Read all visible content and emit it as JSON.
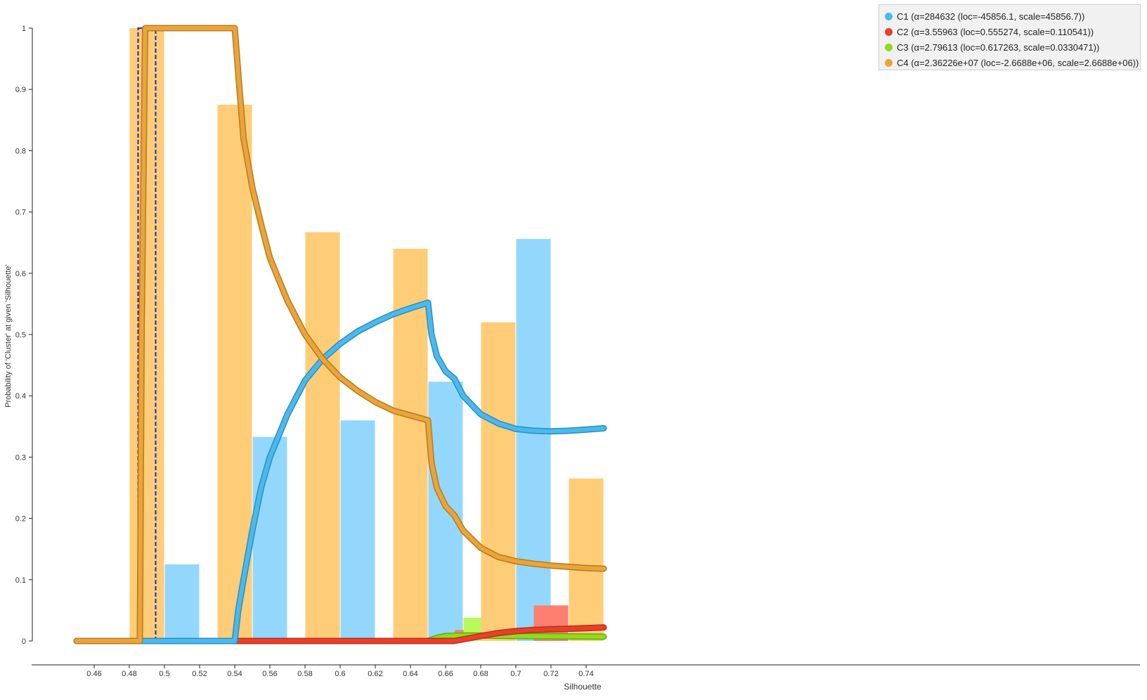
{
  "chart_data": {
    "type": "bar",
    "xlabel": "Silhouette",
    "ylabel": "Probability of 'Cluster' at given 'Silhouette'",
    "xlim": [
      0.45,
      0.75
    ],
    "ylim": [
      0,
      1
    ],
    "xticks": [
      "0.46",
      "0.48",
      "0.5",
      "0.52",
      "0.54",
      "0.56",
      "0.58",
      "0.6",
      "0.62",
      "0.64",
      "0.66",
      "0.68",
      "0.7",
      "0.72",
      "0.74"
    ],
    "yticks": [
      "0",
      "0.1",
      "0.2",
      "0.3",
      "0.4",
      "0.5",
      "0.6",
      "0.7",
      "0.8",
      "0.9",
      "1"
    ],
    "grid": false,
    "legend_position": "top-right",
    "series": [
      {
        "name": "C1 (α=284632 (loc=-45856.1, scale=45856.7))",
        "color": "#4cb9ec",
        "bar_color": "#93d8fc",
        "bars": [
          {
            "x": 0.51,
            "y": 0.125
          },
          {
            "x": 0.56,
            "y": 0.333
          },
          {
            "x": 0.61,
            "y": 0.36
          },
          {
            "x": 0.66,
            "y": 0.423
          },
          {
            "x": 0.71,
            "y": 0.656
          }
        ],
        "curve": [
          [
            0.45,
            0
          ],
          [
            0.54,
            0
          ],
          [
            0.542,
            0.05
          ],
          [
            0.545,
            0.1
          ],
          [
            0.55,
            0.18
          ],
          [
            0.555,
            0.25
          ],
          [
            0.56,
            0.3
          ],
          [
            0.57,
            0.37
          ],
          [
            0.58,
            0.425
          ],
          [
            0.59,
            0.46
          ],
          [
            0.6,
            0.485
          ],
          [
            0.61,
            0.505
          ],
          [
            0.62,
            0.52
          ],
          [
            0.63,
            0.533
          ],
          [
            0.64,
            0.543
          ],
          [
            0.65,
            0.552
          ],
          [
            0.652,
            0.5
          ],
          [
            0.655,
            0.465
          ],
          [
            0.66,
            0.44
          ],
          [
            0.665,
            0.428
          ],
          [
            0.67,
            0.4
          ],
          [
            0.68,
            0.37
          ],
          [
            0.69,
            0.355
          ],
          [
            0.7,
            0.346
          ],
          [
            0.71,
            0.343
          ],
          [
            0.72,
            0.342
          ],
          [
            0.73,
            0.343
          ],
          [
            0.74,
            0.345
          ],
          [
            0.75,
            0.347
          ]
        ]
      },
      {
        "name": "C2 (α=3.55963 (loc=0.555274, scale=0.110541))",
        "color": "#e8402a",
        "bar_color": "#fd7f6f",
        "bars": [
          {
            "x": 0.675,
            "y": 0.018
          },
          {
            "x": 0.72,
            "y": 0.058
          }
        ],
        "curve": [
          [
            0.45,
            0
          ],
          [
            0.665,
            0
          ],
          [
            0.68,
            0.008
          ],
          [
            0.69,
            0.013
          ],
          [
            0.7,
            0.016
          ],
          [
            0.71,
            0.018
          ],
          [
            0.72,
            0.019
          ],
          [
            0.73,
            0.02
          ],
          [
            0.74,
            0.021
          ],
          [
            0.75,
            0.022
          ]
        ]
      },
      {
        "name": "C3 (α=2.79613 (loc=0.617263, scale=0.0330471))",
        "color": "#8edc1a",
        "bar_color": "#b9f95a",
        "bars": [
          {
            "x": 0.68,
            "y": 0.038
          }
        ],
        "curve": [
          [
            0.45,
            0
          ],
          [
            0.65,
            0
          ],
          [
            0.655,
            0.005
          ],
          [
            0.66,
            0.008
          ],
          [
            0.67,
            0.009
          ],
          [
            0.68,
            0.009
          ],
          [
            0.7,
            0.008
          ],
          [
            0.75,
            0.007
          ]
        ]
      },
      {
        "name": "C4 (α=2.36226e+07 (loc=-2.6688e+06, scale=2.6688e+06))",
        "color": "#e9a53a",
        "bar_color": "#ffcc77",
        "bars": [
          {
            "x": 0.49,
            "y": 1.0
          },
          {
            "x": 0.54,
            "y": 0.875
          },
          {
            "x": 0.59,
            "y": 0.667
          },
          {
            "x": 0.64,
            "y": 0.64
          },
          {
            "x": 0.69,
            "y": 0.52
          },
          {
            "x": 0.74,
            "y": 0.265
          }
        ],
        "curve": [
          [
            0.45,
            0
          ],
          [
            0.486,
            0
          ],
          [
            0.487,
            0.5
          ],
          [
            0.489,
            1
          ],
          [
            0.54,
            1
          ],
          [
            0.543,
            0.89
          ],
          [
            0.545,
            0.82
          ],
          [
            0.55,
            0.74
          ],
          [
            0.555,
            0.68
          ],
          [
            0.56,
            0.625
          ],
          [
            0.57,
            0.555
          ],
          [
            0.58,
            0.5
          ],
          [
            0.59,
            0.46
          ],
          [
            0.6,
            0.43
          ],
          [
            0.61,
            0.408
          ],
          [
            0.62,
            0.39
          ],
          [
            0.63,
            0.376
          ],
          [
            0.64,
            0.368
          ],
          [
            0.65,
            0.36
          ],
          [
            0.652,
            0.29
          ],
          [
            0.655,
            0.25
          ],
          [
            0.66,
            0.22
          ],
          [
            0.665,
            0.205
          ],
          [
            0.67,
            0.18
          ],
          [
            0.68,
            0.152
          ],
          [
            0.69,
            0.137
          ],
          [
            0.7,
            0.13
          ],
          [
            0.71,
            0.126
          ],
          [
            0.72,
            0.123
          ],
          [
            0.73,
            0.121
          ],
          [
            0.74,
            0.119
          ],
          [
            0.75,
            0.118
          ]
        ]
      }
    ],
    "selection_x_range": [
      0.485,
      0.495
    ]
  }
}
